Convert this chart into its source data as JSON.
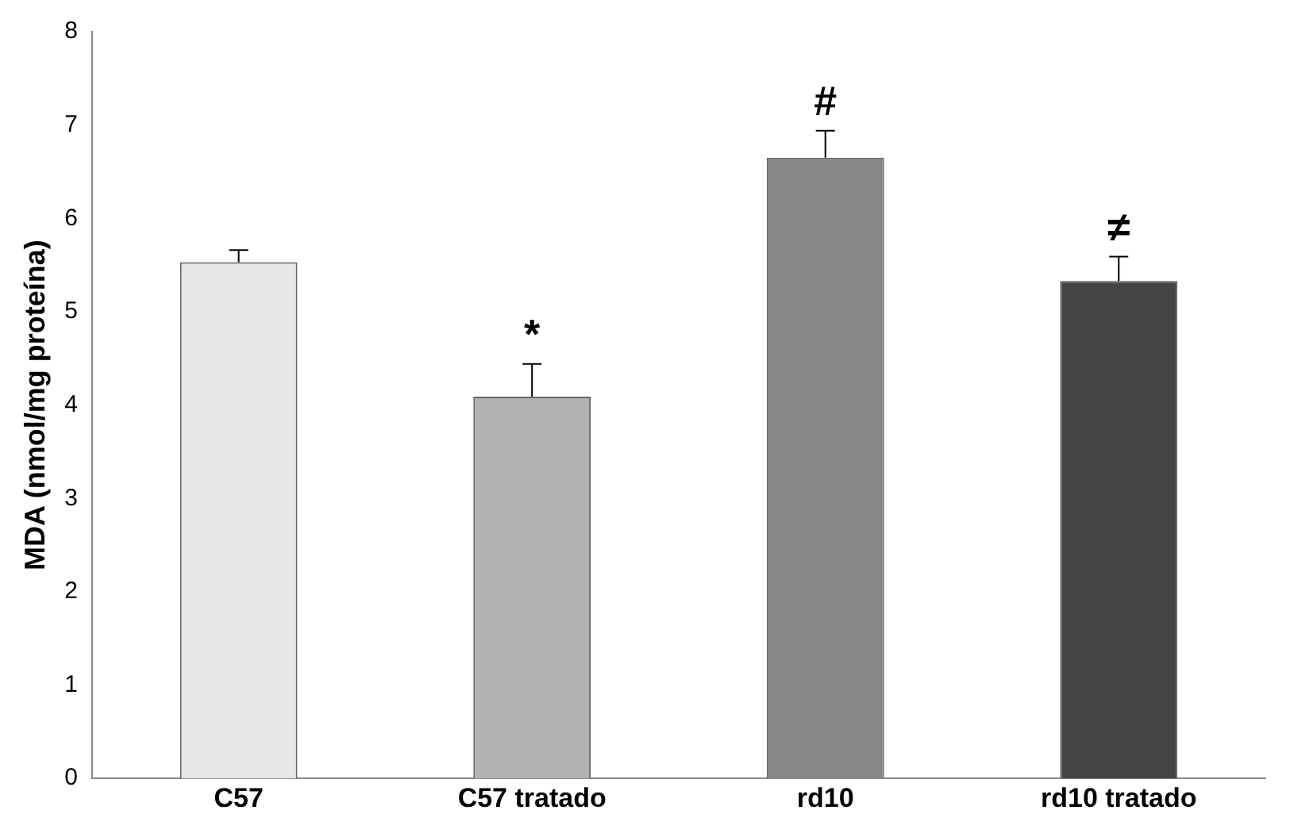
{
  "chart_data": {
    "type": "bar",
    "ylabel": "MDA (nmol/mg proteína)",
    "categories": [
      "C57",
      "C57 tratado",
      "rd10",
      "rd10 tratado"
    ],
    "values": [
      5.53,
      4.09,
      6.65,
      5.33
    ],
    "colors": [
      "#e6e6e6",
      "#b2b2b2",
      "#878787",
      "#444444"
    ],
    "errors": [
      [
        5.53,
        5.66
      ],
      [
        4.09,
        4.44
      ],
      [
        6.65,
        6.94
      ],
      [
        5.33,
        5.59
      ]
    ],
    "ylim": [
      0,
      8
    ],
    "yticks": [
      0,
      1,
      2,
      3,
      4,
      5,
      6,
      7,
      8
    ],
    "grid": false,
    "legend": false,
    "annotations": [
      {
        "text": "*",
        "x": "C57 tratado",
        "y": 4.09
      },
      {
        "text": "#",
        "x": "rd10",
        "y": 6.65
      },
      {
        "text": "≠",
        "x": "rd10 tratado",
        "y": 5.33
      }
    ]
  }
}
